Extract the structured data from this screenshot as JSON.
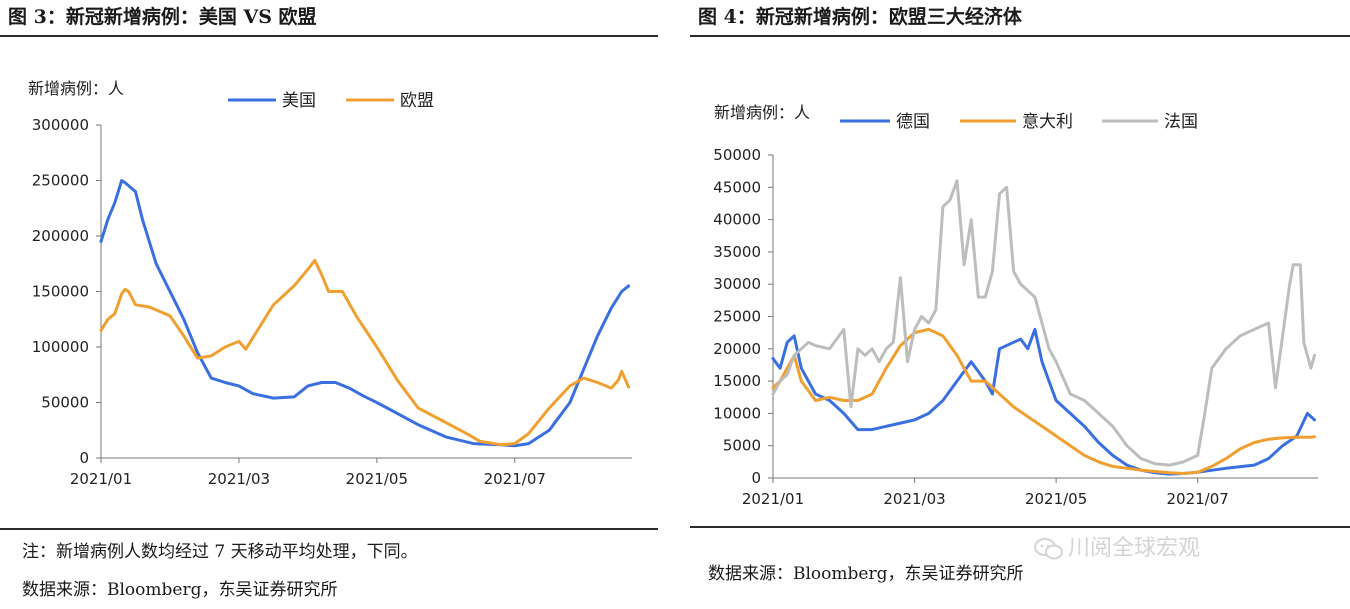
{
  "figures": [
    {
      "title": "图 3：新冠新增病例：美国 VS 欧盟",
      "notes": [
        "注：新增病例人数均经过 7 天移动平均处理，下同。",
        "数据来源：Bloomberg，东吴证券研究所"
      ]
    },
    {
      "title": "图 4：新冠新增病例：欧盟三大经济体",
      "notes": [
        "数据来源：Bloomberg，东吴证券研究所"
      ],
      "watermark": "川阅全球宏观"
    }
  ],
  "chart_data": [
    {
      "type": "line",
      "title": "图 3：新冠新增病例：美国 VS 欧盟",
      "ylabel": "新增病例：人",
      "xlabel": "",
      "ylim": [
        0,
        300000
      ],
      "yticks": [
        0,
        50000,
        100000,
        150000,
        200000,
        250000,
        300000
      ],
      "xlim": [
        0,
        7.7
      ],
      "xticks": [
        {
          "pos": 0,
          "label": "2021/01"
        },
        {
          "pos": 2,
          "label": "2021/03"
        },
        {
          "pos": 4,
          "label": "2021/05"
        },
        {
          "pos": 6,
          "label": "2021/07"
        }
      ],
      "legend_position": "top-center",
      "series": [
        {
          "name": "美国",
          "color": "#3a6fe0",
          "x": [
            0,
            0.1,
            0.2,
            0.3,
            0.35,
            0.5,
            0.6,
            0.8,
            1.0,
            1.2,
            1.4,
            1.6,
            1.8,
            2.0,
            2.2,
            2.5,
            2.8,
            3.0,
            3.2,
            3.4,
            3.6,
            3.8,
            4.0,
            4.3,
            4.6,
            5.0,
            5.4,
            5.8,
            6.0,
            6.2,
            6.5,
            6.8,
            7.0,
            7.2,
            7.4,
            7.55,
            7.65
          ],
          "y": [
            195000,
            215000,
            230000,
            250000,
            248000,
            240000,
            215000,
            175000,
            150000,
            125000,
            95000,
            72000,
            68000,
            65000,
            58000,
            54000,
            55000,
            65000,
            68000,
            68000,
            63000,
            56000,
            50000,
            40000,
            30000,
            19000,
            13000,
            12000,
            11000,
            13000,
            25000,
            50000,
            80000,
            110000,
            135000,
            150000,
            155000
          ]
        },
        {
          "name": "欧盟",
          "color": "#f0a030",
          "x": [
            0,
            0.1,
            0.2,
            0.3,
            0.35,
            0.4,
            0.5,
            0.7,
            1.0,
            1.2,
            1.4,
            1.6,
            1.8,
            2.0,
            2.1,
            2.3,
            2.5,
            2.8,
            3.0,
            3.1,
            3.2,
            3.3,
            3.5,
            3.7,
            4.0,
            4.3,
            4.6,
            5.0,
            5.3,
            5.5,
            5.8,
            6.0,
            6.2,
            6.5,
            6.8,
            7.0,
            7.2,
            7.4,
            7.5,
            7.55,
            7.65
          ],
          "y": [
            115000,
            125000,
            130000,
            148000,
            152000,
            150000,
            138000,
            136000,
            128000,
            110000,
            90000,
            92000,
            100000,
            105000,
            98000,
            118000,
            138000,
            155000,
            170000,
            178000,
            165000,
            150000,
            150000,
            128000,
            100000,
            70000,
            45000,
            32000,
            22000,
            15000,
            12000,
            13000,
            22000,
            45000,
            65000,
            72000,
            68000,
            63000,
            70000,
            78000,
            64000
          ]
        }
      ]
    },
    {
      "type": "line",
      "title": "图 4：新冠新增病例：欧盟三大经济体",
      "ylabel": "新增病例：人",
      "xlabel": "",
      "ylim": [
        0,
        50000
      ],
      "yticks": [
        0,
        5000,
        10000,
        15000,
        20000,
        25000,
        30000,
        35000,
        40000,
        45000,
        50000
      ],
      "xlim": [
        0,
        7.7
      ],
      "xticks": [
        {
          "pos": 0,
          "label": "2021/01"
        },
        {
          "pos": 2,
          "label": "2021/03"
        },
        {
          "pos": 4,
          "label": "2021/05"
        },
        {
          "pos": 6,
          "label": "2021/07"
        }
      ],
      "legend_position": "top-right",
      "series": [
        {
          "name": "德国",
          "color": "#3a6fe0",
          "x": [
            0,
            0.1,
            0.2,
            0.3,
            0.4,
            0.5,
            0.6,
            0.8,
            1.0,
            1.2,
            1.4,
            1.6,
            1.8,
            2.0,
            2.2,
            2.4,
            2.6,
            2.8,
            3.0,
            3.1,
            3.2,
            3.4,
            3.5,
            3.6,
            3.7,
            3.8,
            3.9,
            4.0,
            4.2,
            4.4,
            4.6,
            4.8,
            5.0,
            5.2,
            5.4,
            5.6,
            5.8,
            6.0,
            6.4,
            6.8,
            7.0,
            7.2,
            7.4,
            7.55,
            7.65
          ],
          "y": [
            18500,
            17000,
            21000,
            22000,
            17000,
            15000,
            13000,
            12000,
            10000,
            7500,
            7500,
            8000,
            8500,
            9000,
            10000,
            12000,
            15000,
            18000,
            15000,
            13000,
            20000,
            21000,
            21500,
            20000,
            23000,
            18000,
            15000,
            12000,
            10000,
            8000,
            5500,
            3500,
            2000,
            1200,
            800,
            600,
            700,
            900,
            1500,
            2000,
            3000,
            5000,
            6500,
            10000,
            9000
          ]
        },
        {
          "name": "意大利",
          "color": "#f0a030",
          "x": [
            0,
            0.1,
            0.2,
            0.3,
            0.4,
            0.5,
            0.6,
            0.8,
            1.0,
            1.2,
            1.4,
            1.6,
            1.8,
            2.0,
            2.2,
            2.4,
            2.6,
            2.8,
            3.0,
            3.2,
            3.4,
            3.6,
            3.8,
            4.0,
            4.2,
            4.4,
            4.6,
            4.8,
            5.0,
            5.2,
            5.4,
            5.6,
            5.8,
            6.0,
            6.2,
            6.4,
            6.6,
            6.8,
            7.0,
            7.2,
            7.4,
            7.6,
            7.65
          ],
          "y": [
            14000,
            15000,
            17000,
            19000,
            15000,
            13500,
            12000,
            12500,
            12000,
            12000,
            13000,
            17000,
            20500,
            22500,
            23000,
            22000,
            19000,
            15000,
            15000,
            13000,
            11000,
            9500,
            8000,
            6500,
            5000,
            3500,
            2500,
            1800,
            1500,
            1200,
            1000,
            800,
            700,
            900,
            1800,
            3000,
            4500,
            5500,
            6000,
            6200,
            6300,
            6300,
            6400
          ]
        },
        {
          "name": "法国",
          "color": "#bdbdbd",
          "x": [
            0,
            0.1,
            0.2,
            0.3,
            0.4,
            0.5,
            0.6,
            0.8,
            1.0,
            1.1,
            1.2,
            1.3,
            1.4,
            1.5,
            1.6,
            1.7,
            1.8,
            1.9,
            2.0,
            2.1,
            2.2,
            2.3,
            2.4,
            2.5,
            2.6,
            2.7,
            2.8,
            2.9,
            3.0,
            3.1,
            3.2,
            3.3,
            3.4,
            3.5,
            3.7,
            3.9,
            4.0,
            4.2,
            4.4,
            4.6,
            4.8,
            5.0,
            5.2,
            5.4,
            5.6,
            5.8,
            6.0,
            6.1,
            6.2,
            6.4,
            6.6,
            6.8,
            7.0,
            7.1,
            7.2,
            7.3,
            7.35,
            7.45,
            7.5,
            7.6,
            7.65
          ],
          "y": [
            13000,
            15000,
            16000,
            19000,
            20000,
            21000,
            20500,
            20000,
            23000,
            11000,
            20000,
            19000,
            20000,
            18000,
            20000,
            21000,
            31000,
            18000,
            23000,
            25000,
            24000,
            26000,
            42000,
            43000,
            46000,
            33000,
            40000,
            28000,
            28000,
            32000,
            44000,
            45000,
            32000,
            30000,
            28000,
            20000,
            18000,
            13000,
            12000,
            10000,
            8000,
            5000,
            3000,
            2200,
            2000,
            2500,
            3500,
            10000,
            17000,
            20000,
            22000,
            23000,
            24000,
            14000,
            22000,
            30000,
            33000,
            33000,
            21000,
            17000,
            19000
          ]
        }
      ]
    }
  ]
}
